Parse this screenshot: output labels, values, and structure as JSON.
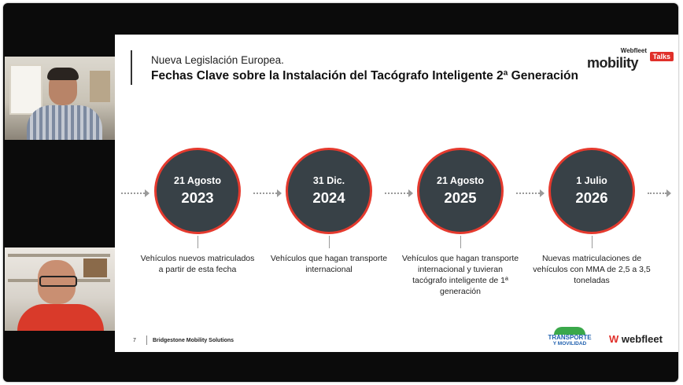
{
  "slide": {
    "subtitle": "Nueva Legislación Europea.",
    "title": "Fechas Clave sobre la Instalación del Tacógrafo Inteligente 2ª Generación",
    "brand": {
      "small": "Webfleet",
      "main": "mobility",
      "tag": "Talks"
    },
    "milestones": [
      {
        "date": "21 Agosto",
        "year": "2023",
        "desc": "Vehículos nuevos matriculados a partir de esta fecha"
      },
      {
        "date": "31 Dic.",
        "year": "2024",
        "desc": "Vehículos que hagan transporte internacional"
      },
      {
        "date": "21 Agosto",
        "year": "2025",
        "desc": "Vehículos que hagan transporte internacional y tuvieran tacógrafo inteligente de 1ª generación"
      },
      {
        "date": "1 Julio",
        "year": "2026",
        "desc": "Nuevas matriculaciones de vehículos con MMA de 2,5 a 3,5 toneladas"
      }
    ],
    "footer": {
      "page_number": "7",
      "company": "Bridgestone Mobility Solutions",
      "logo1_line1": "TRANSPORTE",
      "logo1_line2": "Y MOVILIDAD",
      "logo2": "webfleet"
    }
  },
  "colors": {
    "accent_red": "#e53a2e",
    "circle_fill": "#384147"
  }
}
